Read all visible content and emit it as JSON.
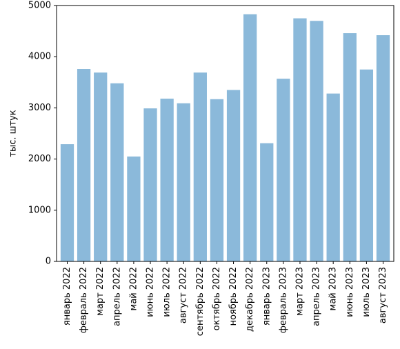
{
  "chart_data": {
    "type": "bar",
    "title": "",
    "xlabel": "",
    "ylabel": "тыс. штук",
    "ylim": [
      0,
      5000
    ],
    "yticks": [
      0,
      1000,
      2000,
      3000,
      4000,
      5000
    ],
    "grid": false,
    "bar_color": "#8bb9da",
    "categories": [
      "январь 2022",
      "февраль 2022",
      "март 2022",
      "апрель 2022",
      "май 2022",
      "июнь 2022",
      "июль 2022",
      "август 2022",
      "сентябрь 2022",
      "октябрь 2022",
      "ноябрь 2022",
      "декабрь 2022",
      "январь 2023",
      "февраль 2023",
      "март 2023",
      "апрель 2023",
      "май 2023",
      "июнь 2023",
      "июль 2023",
      "август 2023"
    ],
    "values": [
      2290,
      3760,
      3690,
      3480,
      2050,
      2990,
      3180,
      3090,
      3690,
      3170,
      3350,
      4830,
      2310,
      3570,
      4750,
      4700,
      3280,
      4460,
      3750,
      4420
    ]
  }
}
